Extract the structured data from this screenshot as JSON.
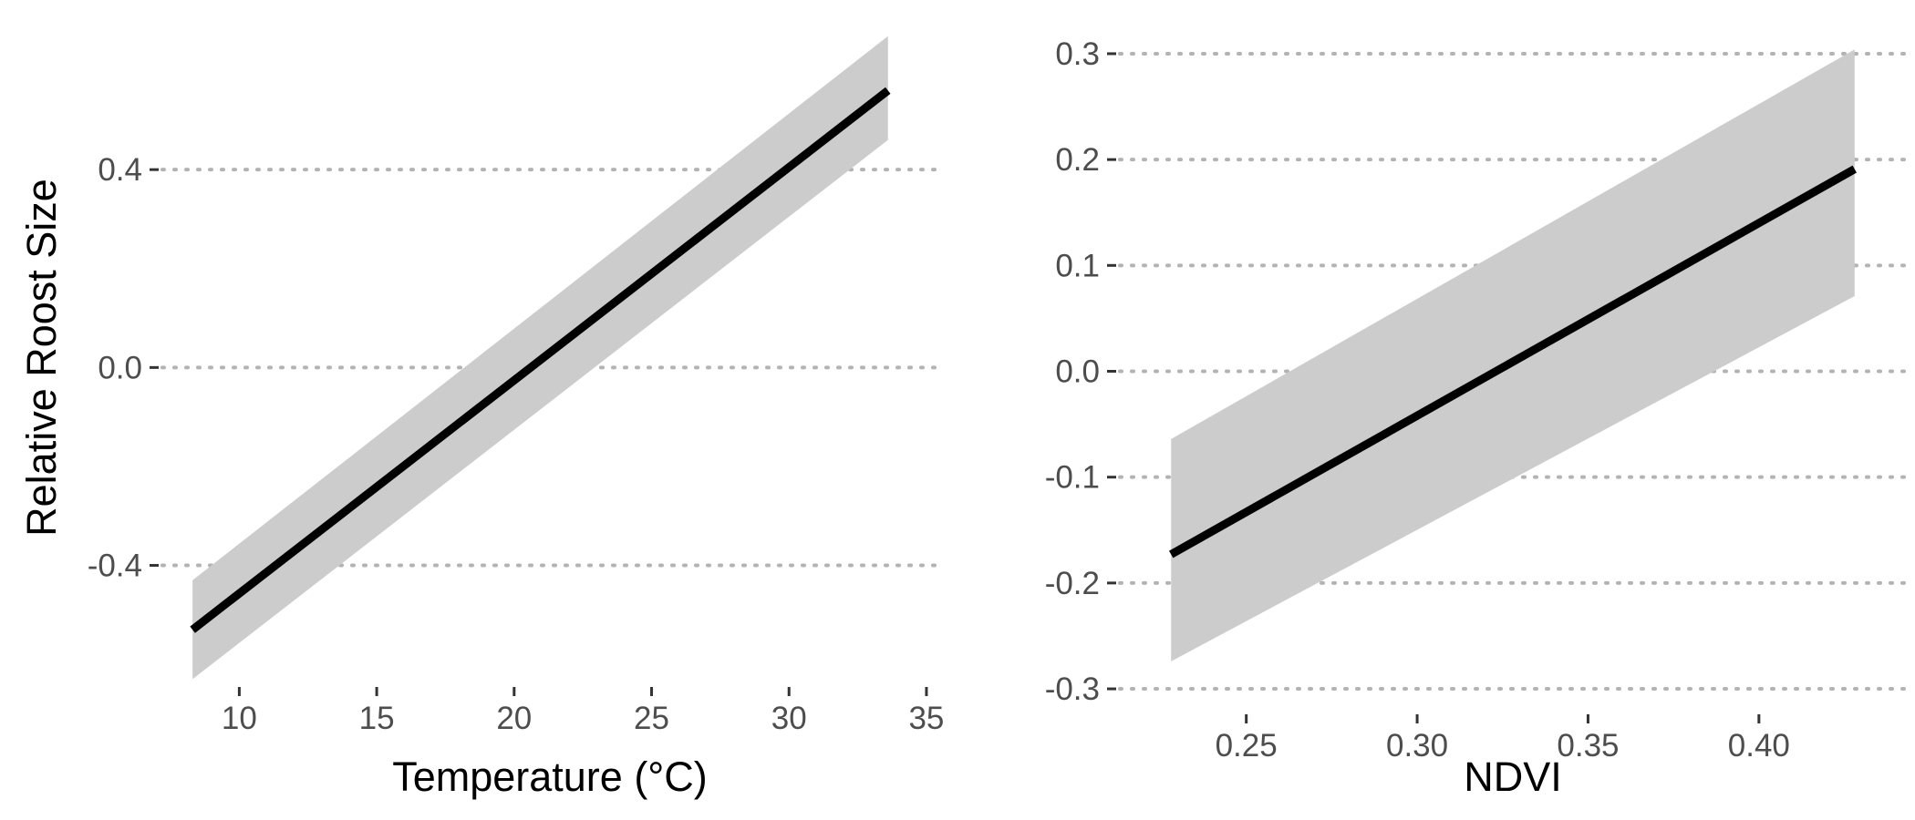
{
  "chart_data": [
    {
      "type": "line",
      "title": "",
      "xlabel": "Temperature (°C)",
      "ylabel": "Relative Roost Size",
      "xlim": [
        7.2,
        35.4
      ],
      "ylim": [
        -0.62,
        0.66
      ],
      "xticks": [
        10,
        15,
        20,
        25,
        30,
        35
      ],
      "yticks": [
        -0.4,
        0.0,
        0.4
      ],
      "xtick_labels": [
        "10",
        "15",
        "20",
        "25",
        "30",
        "35"
      ],
      "ytick_labels": [
        "-0.4",
        "0.0",
        "0.4"
      ],
      "grid": "horizontal-dotted",
      "legend": "none",
      "series": [
        {
          "x": [
            8.3,
            33.6
          ],
          "fit": [
            -0.53,
            0.56
          ],
          "lower": [
            -0.63,
            0.46
          ],
          "upper": [
            -0.43,
            0.67
          ]
        }
      ],
      "colors": {
        "line": "#000000",
        "band": "#cccccc",
        "grid": "#b3b3b3"
      }
    },
    {
      "type": "line",
      "title": "",
      "xlabel": "NDVI",
      "ylabel": "",
      "xlim": [
        0.213,
        0.443
      ],
      "ylim": [
        -0.312,
        0.312
      ],
      "xticks": [
        0.25,
        0.3,
        0.35,
        0.4
      ],
      "yticks": [
        -0.3,
        -0.2,
        -0.1,
        0.0,
        0.1,
        0.2,
        0.3
      ],
      "xtick_labels": [
        "0.25",
        "0.30",
        "0.35",
        "0.40"
      ],
      "ytick_labels": [
        "-0.3",
        "-0.2",
        "-0.1",
        "0.0",
        "0.1",
        "0.2",
        "0.3"
      ],
      "grid": "horizontal-dotted",
      "legend": "none",
      "series": [
        {
          "x": [
            0.228,
            0.428
          ],
          "fit": [
            -0.173,
            0.191
          ],
          "lower": [
            -0.274,
            0.071
          ],
          "upper": [
            -0.064,
            0.304
          ]
        }
      ],
      "colors": {
        "line": "#000000",
        "band": "#cccccc",
        "grid": "#b3b3b3"
      }
    }
  ]
}
